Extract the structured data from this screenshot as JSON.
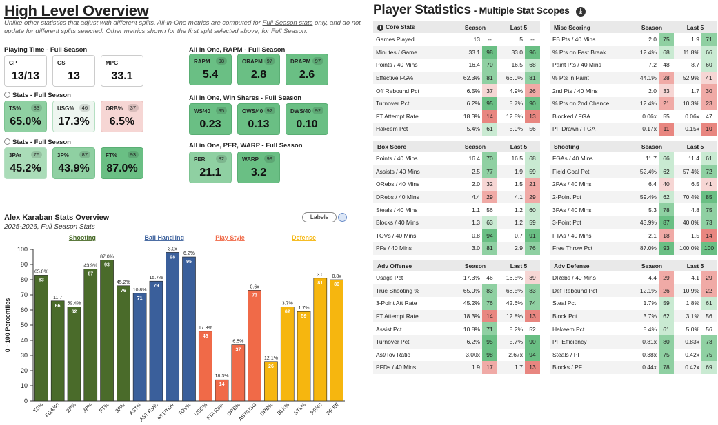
{
  "overview": {
    "title": "High Level Overview",
    "note_a": "Unlike other statistics that adjust with different splits, All-in-One metrics are computed for ",
    "note_link": "Full Season stats",
    "note_b": " only, and do not update for different splits selected. Other metrics shown for the first split selected above, for ",
    "note_link2": "Full Season",
    "note_c": ".",
    "sections": {
      "playing_time": "Playing Time - Full Season",
      "stats1": "Stats - Full Season",
      "stats2": "Stats - Full Season",
      "rapm": "All in One, RAPM - Full Season",
      "ws": "All in One, Win Shares - Full Season",
      "per": "All in One, PER, WARP - Full Season"
    },
    "tiles": {
      "gp": {
        "label": "GP",
        "value": "13/13"
      },
      "gs": {
        "label": "GS",
        "value": "13"
      },
      "mpg": {
        "label": "MPG",
        "value": "33.1"
      },
      "ts": {
        "label": "TS%",
        "pct": "83",
        "value": "65.0%"
      },
      "usg": {
        "label": "USG%",
        "pct": "46",
        "value": "17.3%"
      },
      "orb": {
        "label": "ORB%",
        "pct": "37",
        "value": "6.5%"
      },
      "tpar": {
        "label": "3PAr",
        "pct": "76",
        "value": "45.2%"
      },
      "tpp": {
        "label": "3P%",
        "pct": "87",
        "value": "43.9%"
      },
      "ftp": {
        "label": "FT%",
        "pct": "93",
        "value": "87.0%"
      },
      "rapm": {
        "label": "RAPM",
        "pct": "98",
        "value": "5.4"
      },
      "orapm": {
        "label": "ORAPM",
        "pct": "97",
        "value": "2.8"
      },
      "drapm": {
        "label": "DRAPM",
        "pct": "97",
        "value": "2.6"
      },
      "ws40": {
        "label": "WS/40",
        "pct": "95",
        "value": "0.23"
      },
      "ows40": {
        "label": "OWS/40",
        "pct": "92",
        "value": "0.13"
      },
      "dws40": {
        "label": "DWS/40",
        "pct": "92",
        "value": "0.10"
      },
      "per": {
        "label": "PER",
        "pct": "82",
        "value": "21.1"
      },
      "warp": {
        "label": "WARP",
        "pct": "99",
        "value": "3.2"
      }
    }
  },
  "chart_header": {
    "title": "Alex Karaban Stats Overview",
    "subtitle": "2025-2026, Full Season Stats",
    "labels_button": "Labels"
  },
  "chart_data": {
    "type": "bar",
    "ylabel": "0 - 100 Percentiles",
    "ylim": [
      0,
      100
    ],
    "yticks": [
      0,
      10,
      20,
      30,
      40,
      50,
      60,
      70,
      80,
      90,
      100
    ],
    "groups": [
      {
        "name": "Shooting",
        "color": "#4a6b2a"
      },
      {
        "name": "Ball Handling",
        "color": "#3a5f9b"
      },
      {
        "name": "Play Style",
        "color": "#f06a48"
      },
      {
        "name": "Defense",
        "color": "#f6b60f"
      }
    ],
    "bars": [
      {
        "cat": "TS%",
        "pct": 83,
        "val": "65.0%",
        "group": 0
      },
      {
        "cat": "FGA/40",
        "pct": 66,
        "val": "11.7",
        "group": 0
      },
      {
        "cat": "2P%",
        "pct": 62,
        "val": "59.4%",
        "group": 0
      },
      {
        "cat": "3P%",
        "pct": 87,
        "val": "43.9%",
        "group": 0
      },
      {
        "cat": "FT%",
        "pct": 93,
        "val": "87.0%",
        "group": 0
      },
      {
        "cat": "3PAr",
        "pct": 76,
        "val": "45.2%",
        "group": 0
      },
      {
        "cat": "AST%",
        "pct": 71,
        "val": "10.8%",
        "group": 1
      },
      {
        "cat": "AST Ratio",
        "pct": 79,
        "val": "15.7%",
        "group": 1
      },
      {
        "cat": "AST/TOV",
        "pct": 98,
        "val": "3.0x",
        "group": 1
      },
      {
        "cat": "TOV%",
        "pct": 95,
        "val": "6.2%",
        "group": 1
      },
      {
        "cat": "USG%",
        "pct": 46,
        "val": "17.3%",
        "group": 2
      },
      {
        "cat": "FTA Rate",
        "pct": 14,
        "val": "18.3%",
        "group": 2
      },
      {
        "cat": "ORB%",
        "pct": 37,
        "val": "6.5%",
        "group": 2
      },
      {
        "cat": "AST/USG",
        "pct": 73,
        "val": "0.6x",
        "group": 2
      },
      {
        "cat": "DRB%",
        "pct": 26,
        "val": "12.1%",
        "group": 3
      },
      {
        "cat": "BLK%",
        "pct": 62,
        "val": "3.7%",
        "group": 3
      },
      {
        "cat": "STL%",
        "pct": 59,
        "val": "1.7%",
        "group": 3
      },
      {
        "cat": "PF/40",
        "pct": 81,
        "val": "3.0",
        "group": 3
      },
      {
        "cat": "PF Eff",
        "pct": 80,
        "val": "0.8x",
        "group": 3
      }
    ]
  },
  "player_stats": {
    "title": "Player Statistics",
    "subtitle": "- Multiple Stat Scopes",
    "download_icon": "download-icon",
    "col_season": "Season",
    "col_last5": "Last 5",
    "tables": [
      {
        "title": "Core Stats",
        "icon": true,
        "rows": [
          [
            "Games Played",
            "13",
            "--",
            "5",
            "--"
          ],
          [
            "Minutes / Game",
            "33.1",
            "98",
            "33.0",
            "96"
          ],
          [
            "Points / 40 Mins",
            "16.4",
            "70",
            "16.5",
            "68"
          ],
          [
            "Effective FG%",
            "62.3%",
            "81",
            "66.0%",
            "81"
          ],
          [
            "Off Rebound Pct",
            "6.5%",
            "37",
            "4.9%",
            "26"
          ],
          [
            "Turnover Pct",
            "6.2%",
            "95",
            "5.7%",
            "90"
          ],
          [
            "FT Attempt Rate",
            "18.3%",
            "14",
            "12.8%",
            "13"
          ],
          [
            "Hakeem Pct",
            "5.4%",
            "61",
            "5.0%",
            "56"
          ]
        ]
      },
      {
        "title": "Misc Scoring",
        "rows": [
          [
            "FB Pts / 40 Mins",
            "2.0",
            "75",
            "1.9",
            "71"
          ],
          [
            "% Pts on Fast Break",
            "12.4%",
            "68",
            "11.8%",
            "66"
          ],
          [
            "Paint Pts / 40 Mins",
            "7.2",
            "48",
            "8.7",
            "60"
          ],
          [
            "% Pts in Paint",
            "44.1%",
            "28",
            "52.9%",
            "41"
          ],
          [
            "2nd Pts / 40 Mins",
            "2.0",
            "33",
            "1.7",
            "30"
          ],
          [
            "% Pts on 2nd Chance",
            "12.4%",
            "21",
            "10.3%",
            "23"
          ],
          [
            "Blocked / FGA",
            "0.06x",
            "55",
            "0.06x",
            "47"
          ],
          [
            "PF Drawn / FGA",
            "0.17x",
            "11",
            "0.15x",
            "10"
          ]
        ]
      },
      {
        "title": "Box Score",
        "rows": [
          [
            "Points / 40 Mins",
            "16.4",
            "70",
            "16.5",
            "68"
          ],
          [
            "Assists / 40 Mins",
            "2.5",
            "77",
            "1.9",
            "59"
          ],
          [
            "ORebs / 40 Mins",
            "2.0",
            "32",
            "1.5",
            "21"
          ],
          [
            "DRebs / 40 Mins",
            "4.4",
            "29",
            "4.1",
            "29"
          ],
          [
            "Steals / 40 Mins",
            "1.1",
            "56",
            "1.2",
            "60"
          ],
          [
            "Blocks / 40 Mins",
            "1.3",
            "63",
            "1.2",
            "59"
          ],
          [
            "TOVs / 40 Mins",
            "0.8",
            "94",
            "0.7",
            "91"
          ],
          [
            "PFs / 40 Mins",
            "3.0",
            "81",
            "2.9",
            "76"
          ]
        ]
      },
      {
        "title": "Shooting",
        "rows": [
          [
            "FGAs / 40 Mins",
            "11.7",
            "66",
            "11.4",
            "61"
          ],
          [
            "Field Goal Pct",
            "52.4%",
            "62",
            "57.4%",
            "72"
          ],
          [
            "2PAs / 40 Mins",
            "6.4",
            "40",
            "6.5",
            "41"
          ],
          [
            "2-Point Pct",
            "59.4%",
            "62",
            "70.4%",
            "85"
          ],
          [
            "3PAs / 40 Mins",
            "5.3",
            "78",
            "4.8",
            "75"
          ],
          [
            "3-Point Pct",
            "43.9%",
            "87",
            "40.0%",
            "73"
          ],
          [
            "FTAs / 40 Mins",
            "2.1",
            "18",
            "1.5",
            "14"
          ],
          [
            "Free Throw Pct",
            "87.0%",
            "93",
            "100.0%",
            "100"
          ]
        ]
      },
      {
        "title": "Adv Offense",
        "rows": [
          [
            "Usage Pct",
            "17.3%",
            "46",
            "16.5%",
            "39"
          ],
          [
            "True Shooting %",
            "65.0%",
            "83",
            "68.5%",
            "83"
          ],
          [
            "3-Point Att Rate",
            "45.2%",
            "76",
            "42.6%",
            "74"
          ],
          [
            "FT Attempt Rate",
            "18.3%",
            "14",
            "12.8%",
            "13"
          ],
          [
            "Assist Pct",
            "10.8%",
            "71",
            "8.2%",
            "52"
          ],
          [
            "Turnover Pct",
            "6.2%",
            "95",
            "5.7%",
            "90"
          ],
          [
            "Ast/Tov Ratio",
            "3.00x",
            "98",
            "2.67x",
            "94"
          ],
          [
            "PFDs / 40 Mins",
            "1.9",
            "17",
            "1.7",
            "13"
          ]
        ]
      },
      {
        "title": "Adv Defense",
        "rows": [
          [
            "DRebs / 40 Mins",
            "4.4",
            "29",
            "4.1",
            "29"
          ],
          [
            "Def Rebound Pct",
            "12.1%",
            "26",
            "10.9%",
            "22"
          ],
          [
            "Steal Pct",
            "1.7%",
            "59",
            "1.8%",
            "61"
          ],
          [
            "Block Pct",
            "3.7%",
            "62",
            "3.1%",
            "56"
          ],
          [
            "Hakeem Pct",
            "5.4%",
            "61",
            "5.0%",
            "56"
          ],
          [
            "PF Efficiency",
            "0.81x",
            "80",
            "0.83x",
            "73"
          ],
          [
            "Steals / PF",
            "0.38x",
            "75",
            "0.42x",
            "75"
          ],
          [
            "Blocks / PF",
            "0.44x",
            "78",
            "0.42x",
            "69"
          ]
        ]
      }
    ]
  }
}
